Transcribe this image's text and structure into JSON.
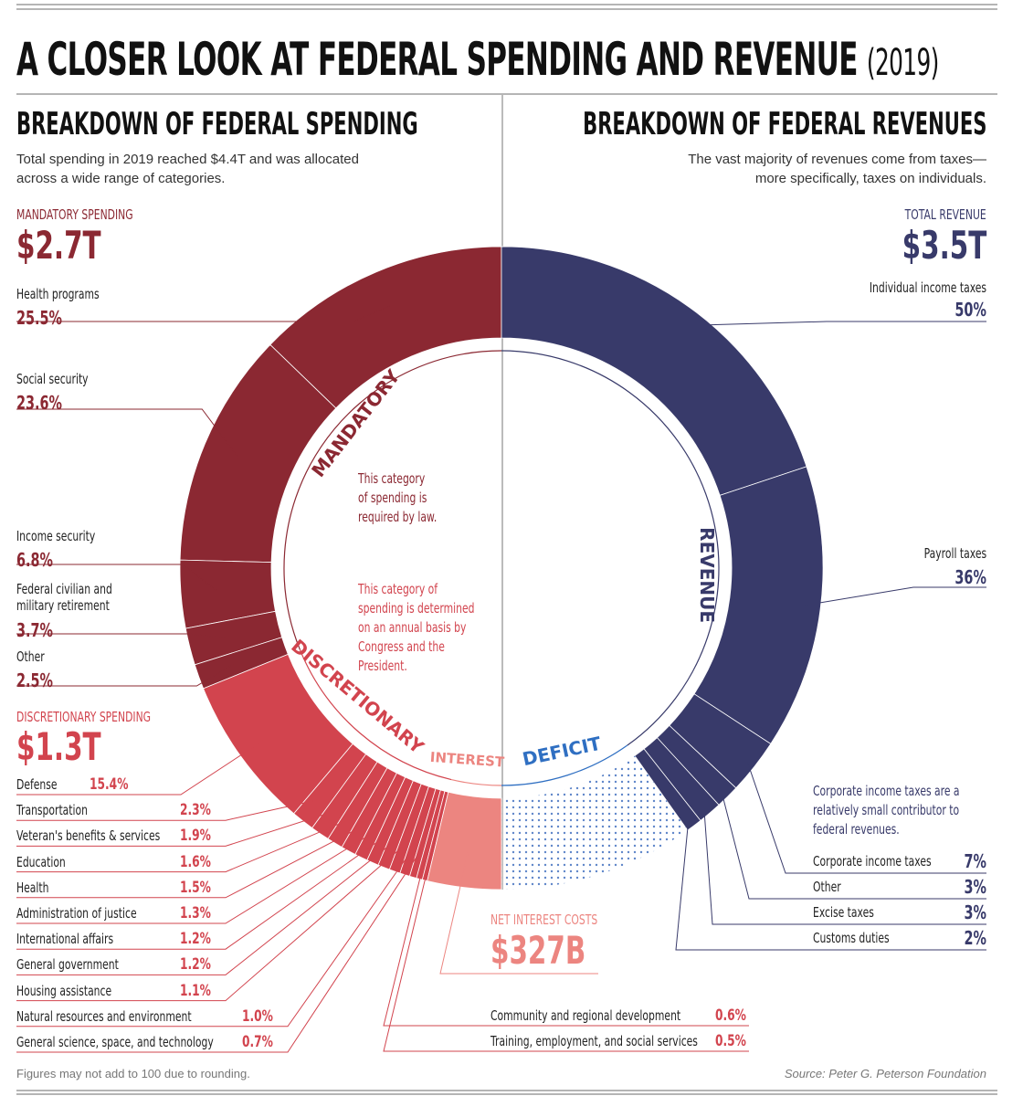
{
  "title": {
    "main": "A CLOSER LOOK AT FEDERAL SPENDING AND REVENUE",
    "year": "(2019)"
  },
  "spending": {
    "heading": "BREAKDOWN OF FEDERAL SPENDING",
    "subtitle_line1": "Total spending in 2019 reached $4.4T and was allocated",
    "subtitle_line2": "across a wide range of categories.",
    "mandatory_label": "MANDATORY SPENDING",
    "mandatory_total": "$2.7T",
    "mandatory_ring_label": "MANDATORY",
    "mandatory_note": [
      "This category",
      "of spending is",
      "required by law."
    ],
    "discretionary_label": "DISCRETIONARY SPENDING",
    "discretionary_total": "$1.3T",
    "discretionary_ring_label": "DISCRETIONARY",
    "discretionary_note": [
      "This category of",
      "spending is determined",
      "on an annual basis by",
      "Congress and the",
      "President."
    ],
    "interest_ring_label": "INTEREST",
    "interest_label": "NET INTEREST COSTS",
    "interest_total": "$327B"
  },
  "revenue": {
    "heading": "BREAKDOWN OF FEDERAL REVENUES",
    "subtitle_line1": "The vast majority of revenues come from taxes—",
    "subtitle_line2": "more specifically, taxes on individuals.",
    "total_label": "TOTAL REVENUE",
    "total": "$3.5T",
    "ring_label": "REVENUE",
    "deficit_label": "DEFICIT",
    "corporate_note": [
      "Corporate income taxes are a",
      "relatively small contributor to",
      "federal revenues."
    ]
  },
  "footer": {
    "note": "Figures may not add to 100 due to rounding.",
    "source": "Source: Peter G. Peterson Foundation"
  },
  "colors": {
    "mandatory": "#8b2832",
    "discretionary": "#d2444e",
    "interest": "#ec8580",
    "revenue": "#383a6a",
    "deficit": "#2f6fc2",
    "gray": "#b5b5b5"
  },
  "chart_data": {
    "type": "pie",
    "title": "A CLOSER LOOK AT FEDERAL SPENDING AND REVENUE (2019)",
    "spending_series": [
      {
        "name": "Health programs",
        "value": 25.5,
        "label": "25.5%",
        "group": "mandatory"
      },
      {
        "name": "Social security",
        "value": 23.6,
        "label": "23.6%",
        "group": "mandatory"
      },
      {
        "name": "Income security",
        "value": 6.8,
        "label": "6.8%",
        "group": "mandatory"
      },
      {
        "name": "Federal civilian and military retirement",
        "value": 3.7,
        "label": "3.7%",
        "group": "mandatory"
      },
      {
        "name": "Other",
        "value": 2.5,
        "label": "2.5%",
        "group": "mandatory"
      },
      {
        "name": "Defense",
        "value": 15.4,
        "label": "15.4%",
        "group": "discretionary"
      },
      {
        "name": "Transportation",
        "value": 2.3,
        "label": "2.3%",
        "group": "discretionary"
      },
      {
        "name": "Veteran's benefits & services",
        "value": 1.9,
        "label": "1.9%",
        "group": "discretionary"
      },
      {
        "name": "Education",
        "value": 1.6,
        "label": "1.6%",
        "group": "discretionary"
      },
      {
        "name": "Health",
        "value": 1.5,
        "label": "1.5%",
        "group": "discretionary"
      },
      {
        "name": "Administration of justice",
        "value": 1.3,
        "label": "1.3%",
        "group": "discretionary"
      },
      {
        "name": "International affairs",
        "value": 1.2,
        "label": "1.2%",
        "group": "discretionary"
      },
      {
        "name": "General government",
        "value": 1.2,
        "label": "1.2%",
        "group": "discretionary"
      },
      {
        "name": "Housing assistance",
        "value": 1.1,
        "label": "1.1%",
        "group": "discretionary"
      },
      {
        "name": "Natural resources and environment",
        "value": 1.0,
        "label": "1.0%",
        "group": "discretionary"
      },
      {
        "name": "General science, space, and technology",
        "value": 0.7,
        "label": "0.7%",
        "group": "discretionary"
      },
      {
        "name": "Community and regional development",
        "value": 0.6,
        "label": "0.6%",
        "group": "discretionary"
      },
      {
        "name": "Training, employment, and social services",
        "value": 0.5,
        "label": "0.5%",
        "group": "discretionary"
      },
      {
        "name": "Net interest",
        "value": 7.4,
        "label": "$327B",
        "group": "interest"
      }
    ],
    "revenue_series": [
      {
        "name": "Individual income taxes",
        "value": 50,
        "label": "50%"
      },
      {
        "name": "Payroll taxes",
        "value": 36,
        "label": "36%"
      },
      {
        "name": "Corporate income taxes",
        "value": 7,
        "label": "7%"
      },
      {
        "name": "Other",
        "value": 3,
        "label": "3%"
      },
      {
        "name": "Excise taxes",
        "value": 3,
        "label": "3%"
      },
      {
        "name": "Customs duties",
        "value": 2,
        "label": "2%"
      }
    ],
    "totals": {
      "spending": 4.4,
      "revenue": 3.5,
      "mandatory": 2.7,
      "discretionary": 1.3,
      "interest": 0.327,
      "unit": "trillion USD"
    }
  }
}
